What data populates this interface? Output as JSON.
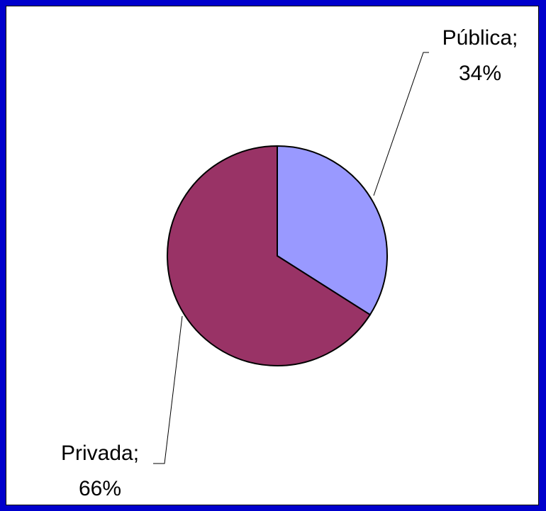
{
  "chart_data": {
    "type": "pie",
    "title": "",
    "slices": [
      {
        "label": "Pública",
        "value": 34,
        "value_text": "34%",
        "color": "#9999FF"
      },
      {
        "label": "Privada",
        "value": 66,
        "value_text": "66%",
        "color": "#993366"
      }
    ],
    "start_angle_deg": 0,
    "direction": "clockwise",
    "legend": "none",
    "background_color": "#FFFFFF",
    "frame_color": "#0000CC"
  }
}
